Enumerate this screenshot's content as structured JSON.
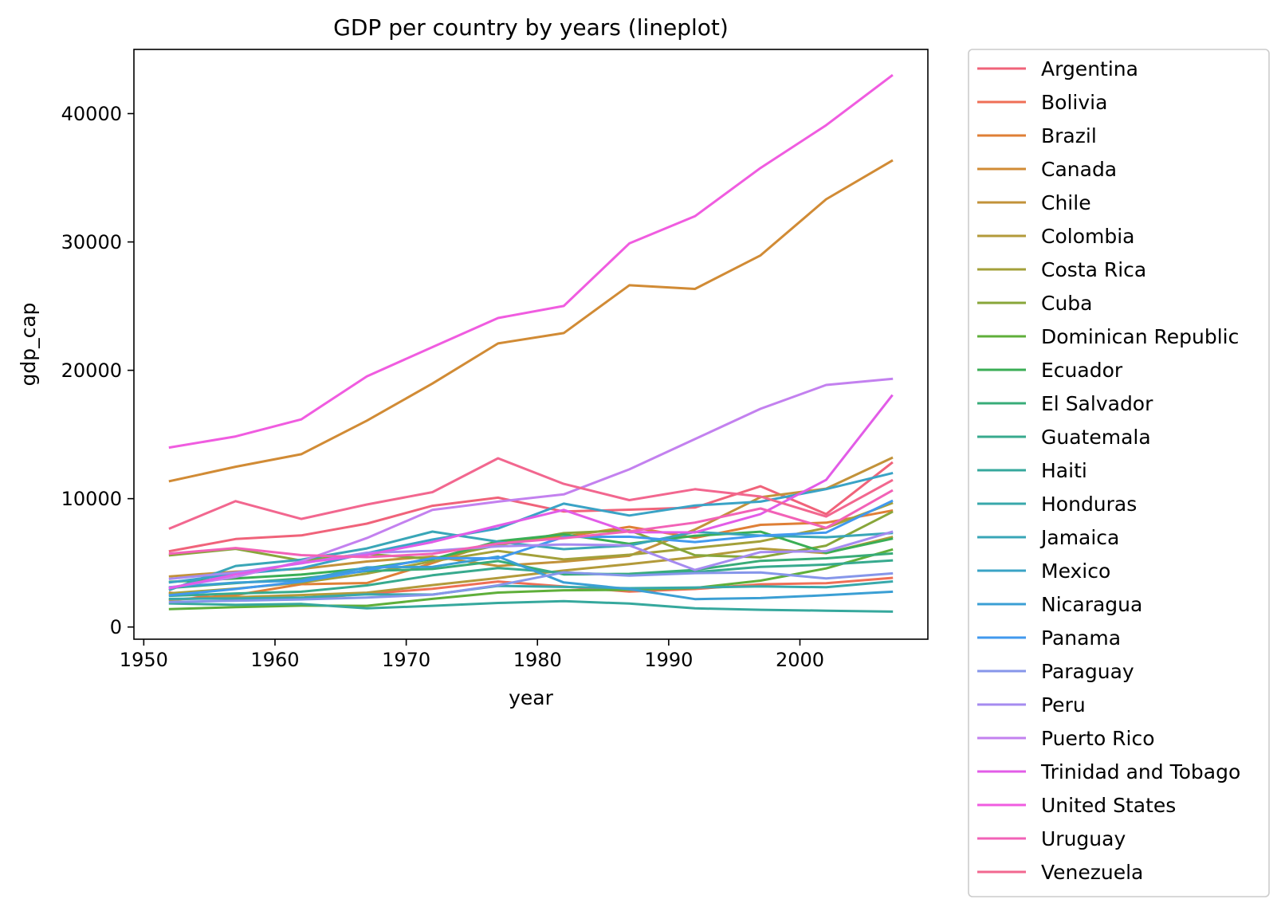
{
  "chart_data": {
    "type": "line",
    "title": "GDP per country by years (lineplot)",
    "xlabel": "year",
    "ylabel": "gdp_cap",
    "xlim": [
      1949.25,
      2009.75
    ],
    "ylim": [
      -950,
      45000
    ],
    "xticks": [
      1950,
      1960,
      1970,
      1980,
      1990,
      2000
    ],
    "yticks": [
      0,
      10000,
      20000,
      30000,
      40000
    ],
    "grid": false,
    "legend_position": "outside-right",
    "x": [
      1952,
      1957,
      1962,
      1967,
      1972,
      1977,
      1982,
      1987,
      1992,
      1997,
      2002,
      2007
    ],
    "series": [
      {
        "name": "Argentina",
        "color": "#f0637a",
        "values": [
          5911,
          6857,
          7133,
          8053,
          9443,
          10079,
          8998,
          9140,
          9308,
          10967,
          8798,
          12779
        ]
      },
      {
        "name": "Bolivia",
        "color": "#ef6f56",
        "values": [
          2677,
          2128,
          2181,
          2587,
          2980,
          3548,
          3157,
          2754,
          2962,
          3326,
          3413,
          3822
        ]
      },
      {
        "name": "Brazil",
        "color": "#df7f36",
        "values": [
          2109,
          2487,
          3337,
          3430,
          4986,
          6660,
          7031,
          7807,
          6950,
          7958,
          8131,
          9066
        ]
      },
      {
        "name": "Canada",
        "color": "#d18b35",
        "values": [
          11367,
          12490,
          13462,
          16077,
          18971,
          22091,
          22899,
          26627,
          26343,
          28955,
          33329,
          36319
        ]
      },
      {
        "name": "Chile",
        "color": "#c2923a",
        "values": [
          3940,
          4316,
          4519,
          5107,
          5494,
          4757,
          5096,
          5547,
          7597,
          10118,
          10779,
          13172
        ]
      },
      {
        "name": "Colombia",
        "color": "#b39a3a",
        "values": [
          2144,
          2324,
          2492,
          2679,
          3265,
          3816,
          4397,
          4903,
          5445,
          6117,
          5755,
          7007
        ]
      },
      {
        "name": "Costa Rica",
        "color": "#a3a03a",
        "values": [
          2627,
          2990,
          3460,
          4162,
          5118,
          5927,
          5263,
          5629,
          6160,
          6677,
          7723,
          9645
        ]
      },
      {
        "name": "Cuba",
        "color": "#88a63a",
        "values": [
          5587,
          6092,
          5181,
          5690,
          5305,
          6380,
          7317,
          7533,
          5593,
          5432,
          6341,
          8948
        ]
      },
      {
        "name": "Dominican Republic",
        "color": "#5faf3a",
        "values": [
          1398,
          1544,
          1662,
          1654,
          2190,
          2682,
          2862,
          2900,
          3045,
          3614,
          4564,
          6025
        ]
      },
      {
        "name": "Ecuador",
        "color": "#3aae55",
        "values": [
          3522,
          3781,
          4086,
          4579,
          5280,
          6680,
          7213,
          6481,
          7104,
          7429,
          5773,
          6873
        ]
      },
      {
        "name": "El Salvador",
        "color": "#38ac78",
        "values": [
          3048,
          3421,
          3776,
          4359,
          4520,
          5139,
          4099,
          4141,
          4444,
          5154,
          5352,
          5728
        ]
      },
      {
        "name": "Guatemala",
        "color": "#37aa8e",
        "values": [
          2428,
          2617,
          2750,
          3243,
          4032,
          4597,
          4229,
          4057,
          4271,
          4684,
          4859,
          5186
        ]
      },
      {
        "name": "Haiti",
        "color": "#36a89d",
        "values": [
          1840,
          1726,
          1797,
          1452,
          1654,
          1874,
          2011,
          1823,
          1456,
          1342,
          1270,
          1202
        ]
      },
      {
        "name": "Honduras",
        "color": "#38a8ab",
        "values": [
          2195,
          2220,
          2291,
          2538,
          2529,
          3203,
          3122,
          3024,
          3082,
          3160,
          3099,
          3548
        ]
      },
      {
        "name": "Jamaica",
        "color": "#39a6b7",
        "values": [
          2899,
          4757,
          5246,
          6125,
          7434,
          6650,
          6068,
          6351,
          7405,
          7122,
          6995,
          7321
        ]
      },
      {
        "name": "Mexico",
        "color": "#3aa3c6",
        "values": [
          3478,
          4132,
          4582,
          5755,
          6809,
          7675,
          9611,
          8688,
          9472,
          9767,
          10742,
          11978
        ]
      },
      {
        "name": "Nicaragua",
        "color": "#3b9fd4",
        "values": [
          3112,
          3457,
          3634,
          4644,
          4689,
          5486,
          3470,
          2955,
          2171,
          2253,
          2475,
          2749
        ]
      },
      {
        "name": "Panama",
        "color": "#4199ee",
        "values": [
          2480,
          2961,
          3536,
          4421,
          5364,
          5352,
          7009,
          7035,
          6618,
          7114,
          7357,
          9809
        ]
      },
      {
        "name": "Paraguay",
        "color": "#8696ea",
        "values": [
          1952,
          2046,
          2148,
          2299,
          2523,
          3248,
          4259,
          3998,
          4197,
          4248,
          3784,
          4173
        ]
      },
      {
        "name": "Peru",
        "color": "#a58bf0",
        "values": [
          3759,
          4245,
          4957,
          5788,
          5938,
          6281,
          6435,
          6361,
          4446,
          5838,
          5909,
          7409
        ]
      },
      {
        "name": "Puerto Rico",
        "color": "#c381ef",
        "values": [
          3082,
          3908,
          5108,
          6929,
          9123,
          9770,
          10331,
          12281,
          14642,
          16999,
          18856,
          19329
        ]
      },
      {
        "name": "Trinidad and Tobago",
        "color": "#e25ce7",
        "values": [
          3023,
          4101,
          4997,
          5622,
          6620,
          7899,
          9119,
          7389,
          7370,
          8792,
          11461,
          18009
        ]
      },
      {
        "name": "United States",
        "color": "#f05ce0",
        "values": [
          13990,
          14847,
          16173,
          19530,
          21806,
          24073,
          25010,
          29884,
          32004,
          35767,
          39097,
          42952
        ]
      },
      {
        "name": "Uruguay",
        "color": "#f262b7",
        "values": [
          5717,
          6151,
          5603,
          5445,
          5703,
          6504,
          6920,
          7452,
          8137,
          9231,
          7727,
          10611
        ]
      },
      {
        "name": "Venezuela",
        "color": "#f2678f",
        "values": [
          7690,
          9803,
          8423,
          9542,
          10506,
          13144,
          11152,
          9884,
          10734,
          10165,
          8605,
          11416
        ]
      }
    ]
  }
}
